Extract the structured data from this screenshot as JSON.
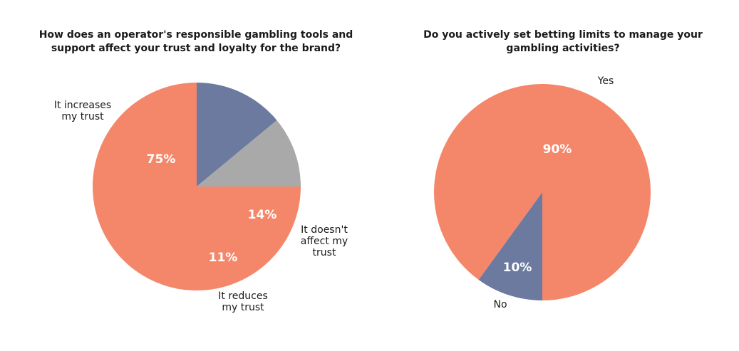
{
  "chart_data": [
    {
      "type": "pie",
      "title": "How does an operator's responsible gambling tools and support affect your trust and loyalty for the brand?",
      "categories": [
        "It increases my trust",
        "It doesn't affect my trust",
        "It reduces my trust"
      ],
      "values": [
        75,
        14,
        11
      ],
      "value_labels": [
        "75%",
        "14%",
        "11%"
      ],
      "colors": [
        "#f4876a",
        "#6b7a9e",
        "#a9a9a9"
      ],
      "legend": "none"
    },
    {
      "type": "pie",
      "title": "Do you actively set betting limits to manage your gambling activities?",
      "categories": [
        "Yes",
        "No"
      ],
      "values": [
        90,
        10
      ],
      "value_labels": [
        "90%",
        "10%"
      ],
      "colors": [
        "#f4876a",
        "#6b7a9e"
      ],
      "legend": "none"
    }
  ]
}
